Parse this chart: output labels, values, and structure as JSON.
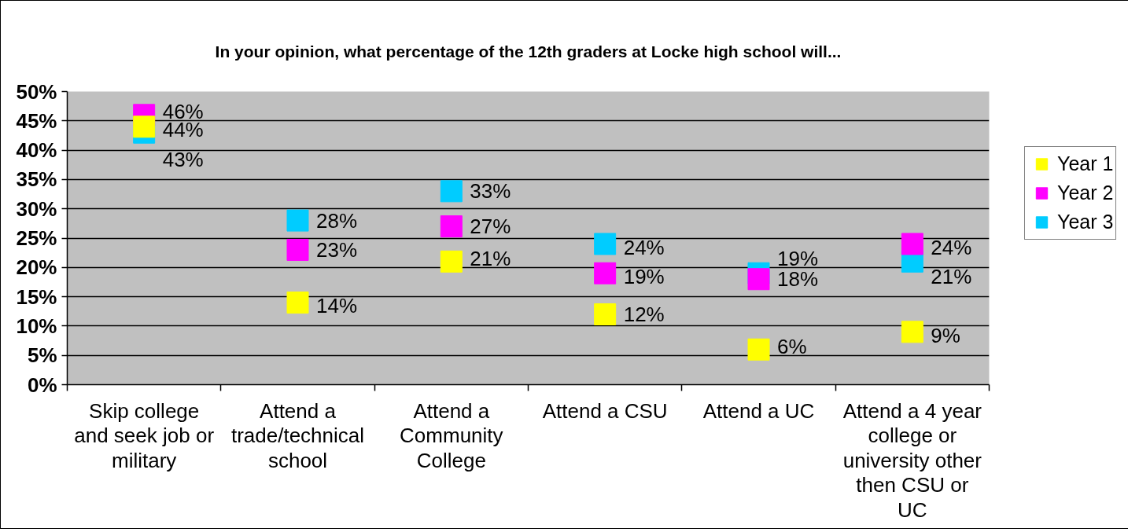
{
  "chart_data": {
    "type": "scatter",
    "title": "In your opinion, what percentage of the 12th graders at Locke high school will...",
    "categories": [
      "Skip college and seek job or military",
      "Attend a trade/technical school",
      "Attend a Community College",
      "Attend a CSU",
      "Attend a UC",
      "Attend a 4 year college or university other then CSU or UC"
    ],
    "series": [
      {
        "name": "Year 1",
        "color": "#ffff00",
        "values": [
          44,
          14,
          21,
          12,
          6,
          9
        ],
        "value_labels": [
          "44%",
          "14%",
          "21%",
          "12%",
          "6%",
          "9%"
        ]
      },
      {
        "name": "Year 2",
        "color": "#ff00ff",
        "values": [
          46,
          23,
          27,
          19,
          18,
          24
        ],
        "value_labels": [
          "46%",
          "23%",
          "27%",
          "19%",
          "18%",
          "24%"
        ]
      },
      {
        "name": "Year 3",
        "color": "#00ccff",
        "values": [
          43,
          28,
          33,
          24,
          19,
          21
        ],
        "value_labels": [
          "43%",
          "28%",
          "33%",
          "24%",
          "19%",
          "21%"
        ]
      }
    ],
    "ylim": [
      0,
      50
    ],
    "yticks": [
      {
        "value": 0,
        "label": "0%"
      },
      {
        "value": 5,
        "label": "5%"
      },
      {
        "value": 10,
        "label": "10%"
      },
      {
        "value": 15,
        "label": "15%"
      },
      {
        "value": 20,
        "label": "20%"
      },
      {
        "value": 25,
        "label": "25%"
      },
      {
        "value": 30,
        "label": "30%"
      },
      {
        "value": 35,
        "label": "35%"
      },
      {
        "value": 40,
        "label": "40%"
      },
      {
        "value": 45,
        "label": "45%"
      },
      {
        "value": 50,
        "label": "50%"
      }
    ],
    "grid": "y",
    "legend": "right",
    "marker": "square"
  }
}
